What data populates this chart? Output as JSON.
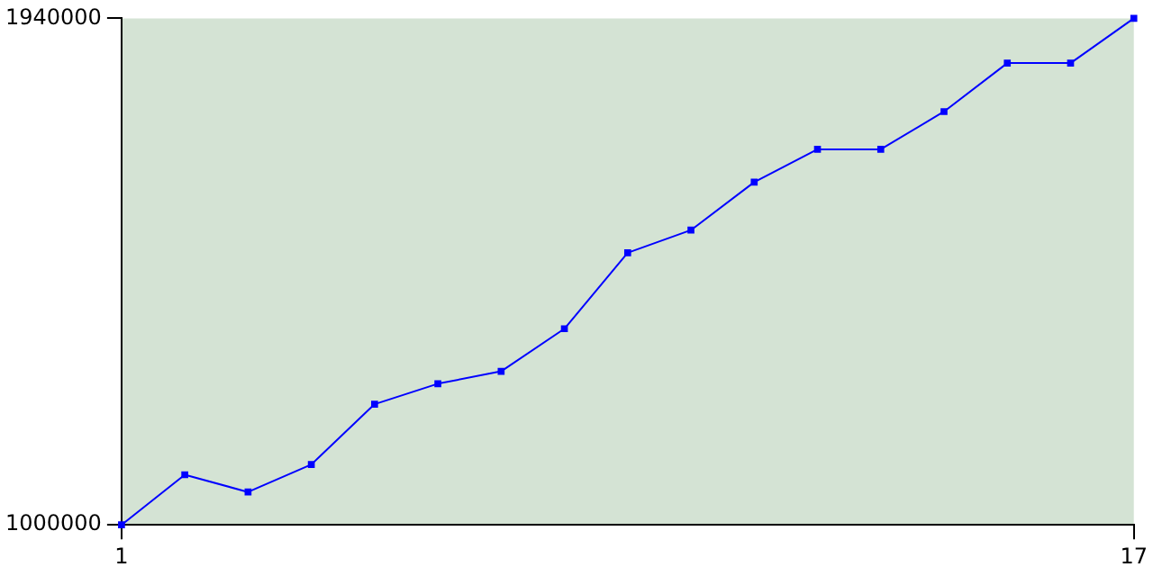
{
  "chart_data": {
    "type": "line",
    "x": [
      1,
      2,
      3,
      4,
      5,
      6,
      7,
      8,
      9,
      10,
      11,
      12,
      13,
      14,
      15,
      16,
      17
    ],
    "series": [
      {
        "color": "#0000ff",
        "values": [
          1000000,
          1093000,
          1061000,
          1112000,
          1224000,
          1262000,
          1285000,
          1364000,
          1505000,
          1547000,
          1636000,
          1697000,
          1697000,
          1767000,
          1857000,
          1857000,
          1940000
        ]
      }
    ],
    "xlim": [
      1,
      17
    ],
    "xticks": [
      1,
      17
    ],
    "ylim": [
      1000000,
      1940000
    ],
    "yticks": [
      1000000,
      1940000
    ],
    "grid": false,
    "legend": false,
    "marker": "square",
    "line_style": "solid"
  }
}
